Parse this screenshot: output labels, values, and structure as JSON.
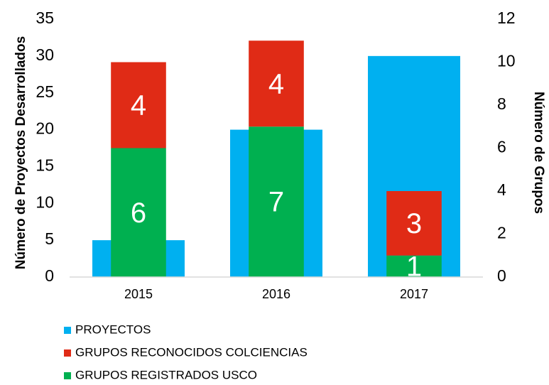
{
  "chart_data": {
    "type": "bar",
    "ylabel": "Número de Proyectos Desarrollados",
    "y2label": "Número de Grupos",
    "categories": [
      "2015",
      "2016",
      "2017"
    ],
    "series": [
      {
        "name": "PROYECTOS",
        "color": "#00b0f0",
        "axis": "y",
        "values": [
          5,
          20,
          30
        ]
      },
      {
        "name": "GRUPOS RECONOCIDOS COLCIENCIAS",
        "color": "#e02b16",
        "axis": "y2",
        "values": [
          4,
          4,
          3
        ]
      },
      {
        "name": "GRUPOS REGISTRADOS USCO",
        "color": "#00b050",
        "axis": "y2",
        "values": [
          6,
          7,
          1
        ]
      }
    ],
    "ylim": [
      0,
      35
    ],
    "yticks": [
      0,
      5,
      10,
      15,
      20,
      25,
      30,
      35
    ],
    "y2lim": [
      0,
      12
    ],
    "y2ticks": [
      0,
      2,
      4,
      6,
      8,
      10,
      12
    ],
    "stacked": true,
    "legend": "bottom"
  }
}
